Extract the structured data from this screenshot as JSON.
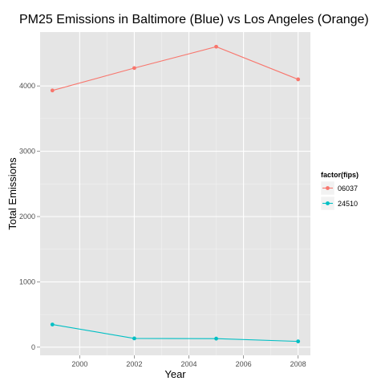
{
  "chart_data": {
    "type": "line",
    "title": "PM25 Emissions in Baltimore (Blue) vs Los Angeles (Orange)",
    "xlabel": "Year",
    "ylabel": "Total Emissions",
    "x": [
      1999,
      2002,
      2005,
      2008
    ],
    "xlim": [
      1998.55,
      2008.45
    ],
    "ylim": [
      -125,
      4825
    ],
    "xticks": [
      2000,
      2002,
      2004,
      2006,
      2008
    ],
    "yticks": [
      0,
      1000,
      2000,
      3000,
      4000
    ],
    "grid": true,
    "legend_title": "factor(fips)",
    "legend_position": "right",
    "series": [
      {
        "name": "06037",
        "color": "#F8766D",
        "values": [
          3931,
          4274,
          4601,
          4101
        ]
      },
      {
        "name": "24510",
        "color": "#00BFC4",
        "values": [
          346.8,
          134.3,
          130.4,
          88.3
        ]
      }
    ]
  },
  "colors": {
    "panel_background": "#e5e5e5",
    "grid_major": "#ffffff",
    "grid_minor": "#f2f2f2"
  }
}
